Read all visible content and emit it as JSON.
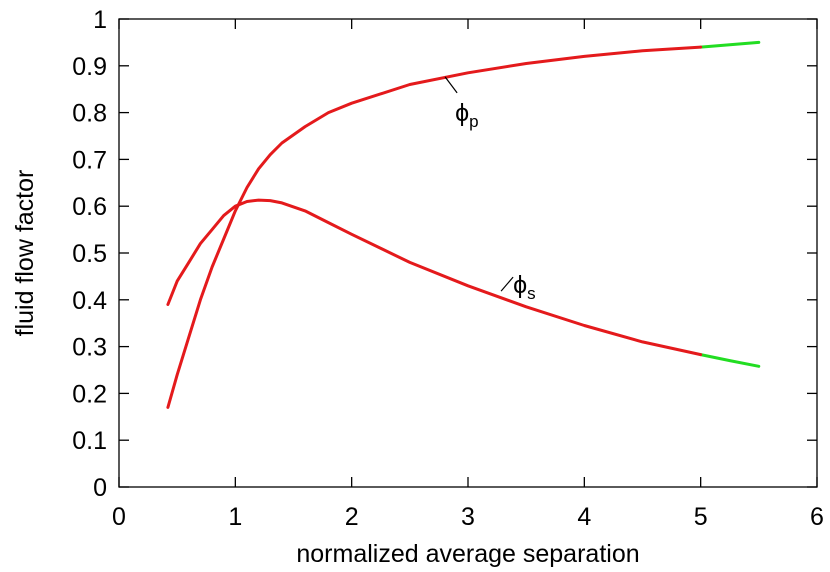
{
  "chart_data": {
    "type": "line",
    "title": "",
    "xlabel": "normalized average separation",
    "ylabel": "fluid flow factor",
    "xlim": [
      0,
      6
    ],
    "ylim": [
      0,
      1
    ],
    "xticks": [
      "0",
      "1",
      "2",
      "3",
      "4",
      "5",
      "6"
    ],
    "yticks": [
      "0",
      "0.1",
      "0.2",
      "0.3",
      "0.4",
      "0.5",
      "0.6",
      "0.7",
      "0.8",
      "0.9",
      "1"
    ],
    "grid": false,
    "colors": {
      "measured": "#e41a1c",
      "extrapolated": "#22dd22"
    },
    "series": [
      {
        "name_symbol": "ϕ",
        "name_sub": "p",
        "color": "#e41a1c",
        "extrapolated_color": "#22dd22",
        "x": [
          0.42,
          0.5,
          0.6,
          0.7,
          0.8,
          0.9,
          1.0,
          1.1,
          1.2,
          1.3,
          1.4,
          1.6,
          1.8,
          2.0,
          2.5,
          3.0,
          3.5,
          4.0,
          4.5,
          5.0,
          5.25,
          5.5
        ],
        "y": [
          0.17,
          0.24,
          0.32,
          0.4,
          0.47,
          0.53,
          0.59,
          0.64,
          0.68,
          0.71,
          0.735,
          0.77,
          0.8,
          0.82,
          0.86,
          0.885,
          0.905,
          0.92,
          0.932,
          0.94,
          0.945,
          0.95
        ],
        "extrapolated_from": 5.0
      },
      {
        "name_symbol": "ϕ",
        "name_sub": "s",
        "color": "#e41a1c",
        "extrapolated_color": "#22dd22",
        "x": [
          0.42,
          0.5,
          0.6,
          0.7,
          0.8,
          0.9,
          1.0,
          1.1,
          1.2,
          1.3,
          1.4,
          1.6,
          1.8,
          2.0,
          2.5,
          3.0,
          3.5,
          4.0,
          4.5,
          5.0,
          5.25,
          5.5
        ],
        "y": [
          0.39,
          0.44,
          0.48,
          0.52,
          0.55,
          0.58,
          0.6,
          0.61,
          0.613,
          0.612,
          0.607,
          0.59,
          0.565,
          0.54,
          0.48,
          0.43,
          0.385,
          0.345,
          0.31,
          0.283,
          0.27,
          0.258
        ],
        "extrapolated_from": 5.0
      }
    ],
    "annotations": [
      {
        "series": 0,
        "text_symbol": "ϕ",
        "text_sub": "p",
        "at_x": 2.7,
        "at_y": 0.872
      },
      {
        "series": 1,
        "text_symbol": "ϕ",
        "text_sub": "s",
        "at_x": 3.25,
        "at_y": 0.41
      }
    ]
  }
}
